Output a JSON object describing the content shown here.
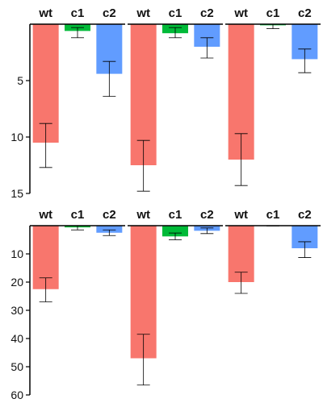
{
  "chart_data": {
    "type": "bar",
    "orientation": "inverted-y",
    "categories": [
      "wt",
      "c1",
      "c2"
    ],
    "colors": {
      "wt": "#F8766D",
      "c1": "#00BA38",
      "c2": "#619CFF"
    },
    "grid": false,
    "rows": [
      {
        "ylim": [
          0,
          15
        ],
        "yticks": [
          5,
          10,
          15
        ],
        "panels": [
          {
            "values": [
              10.5,
              0.6,
              4.4
            ],
            "errors": [
              [
                8.8,
                12.7
              ],
              [
                0.3,
                1.2
              ],
              [
                3.3,
                6.4
              ]
            ]
          },
          {
            "values": [
              12.5,
              0.8,
              2.0
            ],
            "errors": [
              [
                10.3,
                14.8
              ],
              [
                0.3,
                1.2
              ],
              [
                1.2,
                3.0
              ]
            ]
          },
          {
            "values": [
              12.0,
              0.1,
              3.1
            ],
            "errors": [
              [
                9.7,
                14.3
              ],
              [
                0.0,
                0.4
              ],
              [
                2.2,
                4.3
              ]
            ]
          }
        ]
      },
      {
        "ylim": [
          0,
          60
        ],
        "yticks": [
          10,
          20,
          30,
          40,
          50,
          60
        ],
        "panels": [
          {
            "values": [
              22.5,
              0.6,
              2.5
            ],
            "errors": [
              [
                18.5,
                27.0
              ],
              [
                0.0,
                1.5
              ],
              [
                1.5,
                3.5
              ]
            ]
          },
          {
            "values": [
              47.0,
              3.8,
              1.8
            ],
            "errors": [
              [
                38.5,
                56.5
              ],
              [
                2.6,
                5.0
              ],
              [
                0.8,
                2.8
              ]
            ]
          },
          {
            "values": [
              20.0,
              0.1,
              8.0
            ],
            "errors": [
              [
                16.5,
                24.0
              ],
              [
                0.0,
                0.1
              ],
              [
                5.7,
                11.3
              ]
            ]
          }
        ]
      }
    ]
  }
}
